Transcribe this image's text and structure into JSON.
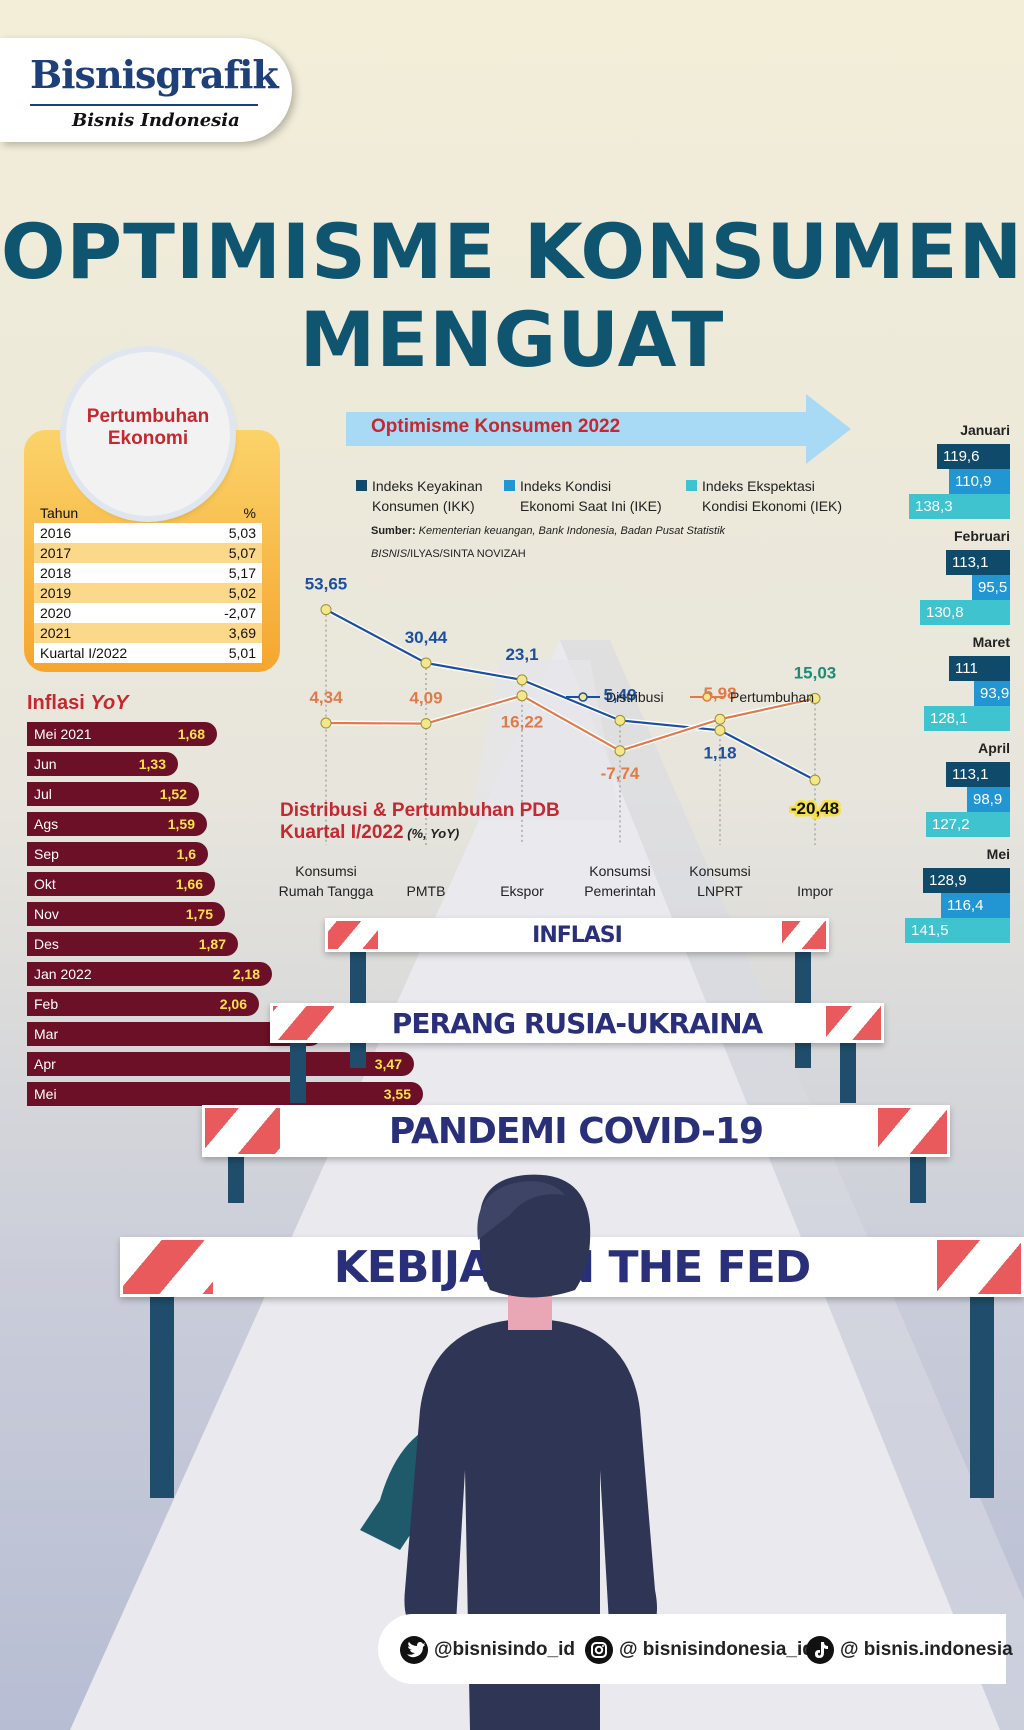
{
  "header": {
    "logo_title": "Bisnisgrafik",
    "logo_sub": "Bisnis Indonesia"
  },
  "title": {
    "line1": "OPTIMISME KONSUMEN",
    "line2": "MENGUAT"
  },
  "colors": {
    "title": "#0f5570",
    "red": "#c5282f",
    "ikk": "#0f4a6b",
    "ike": "#2196d3",
    "iek": "#3fc3cf",
    "inflasi": "#6b1026",
    "distribusi": "#1d4fa0",
    "pertumbuhan": "#e07a4a",
    "hurdle_red": "#e85a5c",
    "hurdle_post": "#1f4d6b"
  },
  "pertumbuhan": {
    "title_line1": "Pertumbuhan",
    "title_line2": "Ekonomi",
    "header_year": "Tahun",
    "header_unit": "%",
    "rows": [
      {
        "year": "2016",
        "value": "5,03"
      },
      {
        "year": "2017",
        "value": "5,07"
      },
      {
        "year": "2018",
        "value": "5,17"
      },
      {
        "year": "2019",
        "value": "5,02"
      },
      {
        "year": "2020",
        "value": "-2,07"
      },
      {
        "year": "2021",
        "value": "3,69"
      },
      {
        "year": "Kuartal I/2022",
        "value": "5,01"
      }
    ]
  },
  "inflasi": {
    "title": "Inflasi ",
    "title_em": "YoY",
    "items": [
      {
        "label": "Mei 2021",
        "value": "1,68"
      },
      {
        "label": "Jun",
        "value": "1,33"
      },
      {
        "label": "Jul",
        "value": "1,52"
      },
      {
        "label": "Ags",
        "value": "1,59"
      },
      {
        "label": "Sep",
        "value": "1,6"
      },
      {
        "label": "Okt",
        "value": "1,66"
      },
      {
        "label": "Nov",
        "value": "1,75"
      },
      {
        "label": "Des",
        "value": "1,87"
      },
      {
        "label": "Jan 2022",
        "value": "2,18"
      },
      {
        "label": "Feb",
        "value": "2,06"
      },
      {
        "label": "Mar",
        "value": "2,64"
      },
      {
        "label": "Apr",
        "value": "3,47"
      },
      {
        "label": "Mei",
        "value": "3,55"
      }
    ]
  },
  "optimisme": {
    "title": "Optimisme Konsumen 2022",
    "legend": [
      {
        "line1": "Indeks Keyakinan",
        "line2": "Konsumen (IKK)"
      },
      {
        "line1": "Indeks Kondisi",
        "line2": "Ekonomi Saat Ini (IKE)"
      },
      {
        "line1": "Indeks Ekspektasi",
        "line2": "Kondisi Ekonomi (IEK)"
      }
    ],
    "source_label": "Sumber:",
    "source_text": " Kementerian keuangan, Bank Indonesia, Badan Pusat Statistik",
    "credit_em": "BISNIS",
    "credit_rest": "/ILYAS/SINTA NOVIZAH",
    "months": [
      {
        "name": "Januari",
        "ikk": "119,6",
        "ike": "110,9",
        "iek": "138,3"
      },
      {
        "name": "Februari",
        "ikk": "113,1",
        "ike": "95,5",
        "iek": "130,8"
      },
      {
        "name": "Maret",
        "ikk": "111",
        "ike": "93,9",
        "iek": "128,1"
      },
      {
        "name": "April",
        "ikk": "113,1",
        "ike": "98,9",
        "iek": "127,2"
      },
      {
        "name": "Mei",
        "ikk": "128,9",
        "ike": "116,4",
        "iek": "141,5"
      }
    ]
  },
  "pdb": {
    "title_line1": "Distribusi & Pertumbuhan PDB",
    "title_line2": "Kuartal I/2022",
    "unit": " (%, YoY)",
    "legend_distribusi": "Distribusi",
    "legend_pertumbuhan": "Pertumbuhan"
  },
  "chart_data": [
    {
      "type": "line",
      "title": "Distribusi & Pertumbuhan PDB Kuartal I/2022",
      "categories": [
        "Konsumsi Rumah Tangga",
        "PMTB",
        "Ekspor",
        "Konsumsi Pemerintah",
        "Konsumsi LNPRT",
        "Impor"
      ],
      "category_lines": [
        [
          "Konsumsi",
          "Rumah Tangga"
        ],
        [
          "PMTB"
        ],
        [
          "Ekspor"
        ],
        [
          "Konsumsi",
          "Pemerintah"
        ],
        [
          "Konsumsi",
          "LNPRT"
        ],
        [
          "Impor"
        ]
      ],
      "series": [
        {
          "name": "Distribusi",
          "values": [
            53.65,
            30.44,
            23.1,
            5.49,
            1.18,
            -20.48
          ],
          "labels": [
            "53,65",
            "30,44",
            "23,1",
            "5,49",
            "1,18",
            "-20,48"
          ]
        },
        {
          "name": "Pertumbuhan",
          "values": [
            4.34,
            4.09,
            16.22,
            -7.74,
            5.98,
            15.03
          ],
          "labels": [
            "4,34",
            "4,09",
            "16,22",
            "-7,74",
            "5,98",
            "15,03"
          ]
        }
      ]
    },
    {
      "type": "bar",
      "title": "Optimisme Konsumen 2022",
      "categories": [
        "Januari",
        "Februari",
        "Maret",
        "April",
        "Mei"
      ],
      "series": [
        {
          "name": "Indeks Keyakinan Konsumen (IKK)",
          "values": [
            119.6,
            113.1,
            111,
            113.1,
            128.9
          ]
        },
        {
          "name": "Indeks Kondisi Ekonomi Saat Ini (IKE)",
          "values": [
            110.9,
            95.5,
            93.9,
            98.9,
            116.4
          ]
        },
        {
          "name": "Indeks Ekspektasi Kondisi Ekonomi (IEK)",
          "values": [
            138.3,
            130.8,
            128.1,
            127.2,
            141.5
          ]
        }
      ]
    },
    {
      "type": "bar",
      "title": "Inflasi YoY",
      "categories": [
        "Mei 2021",
        "Jun",
        "Jul",
        "Ags",
        "Sep",
        "Okt",
        "Nov",
        "Des",
        "Jan 2022",
        "Feb",
        "Mar",
        "Apr",
        "Mei"
      ],
      "values": [
        1.68,
        1.33,
        1.52,
        1.59,
        1.6,
        1.66,
        1.75,
        1.87,
        2.18,
        2.06,
        2.64,
        3.47,
        3.55
      ]
    }
  ],
  "hurdles": [
    "INFLASI",
    "PERANG RUSIA-UKRAINA",
    "PANDEMI COVID-19",
    "KEBIJAKAN THE FED"
  ],
  "footer": {
    "twitter": "@bisnisindo_id",
    "instagram": "@ bisnisindonesia_id",
    "tiktok": "@ bisnis.indonesia"
  }
}
